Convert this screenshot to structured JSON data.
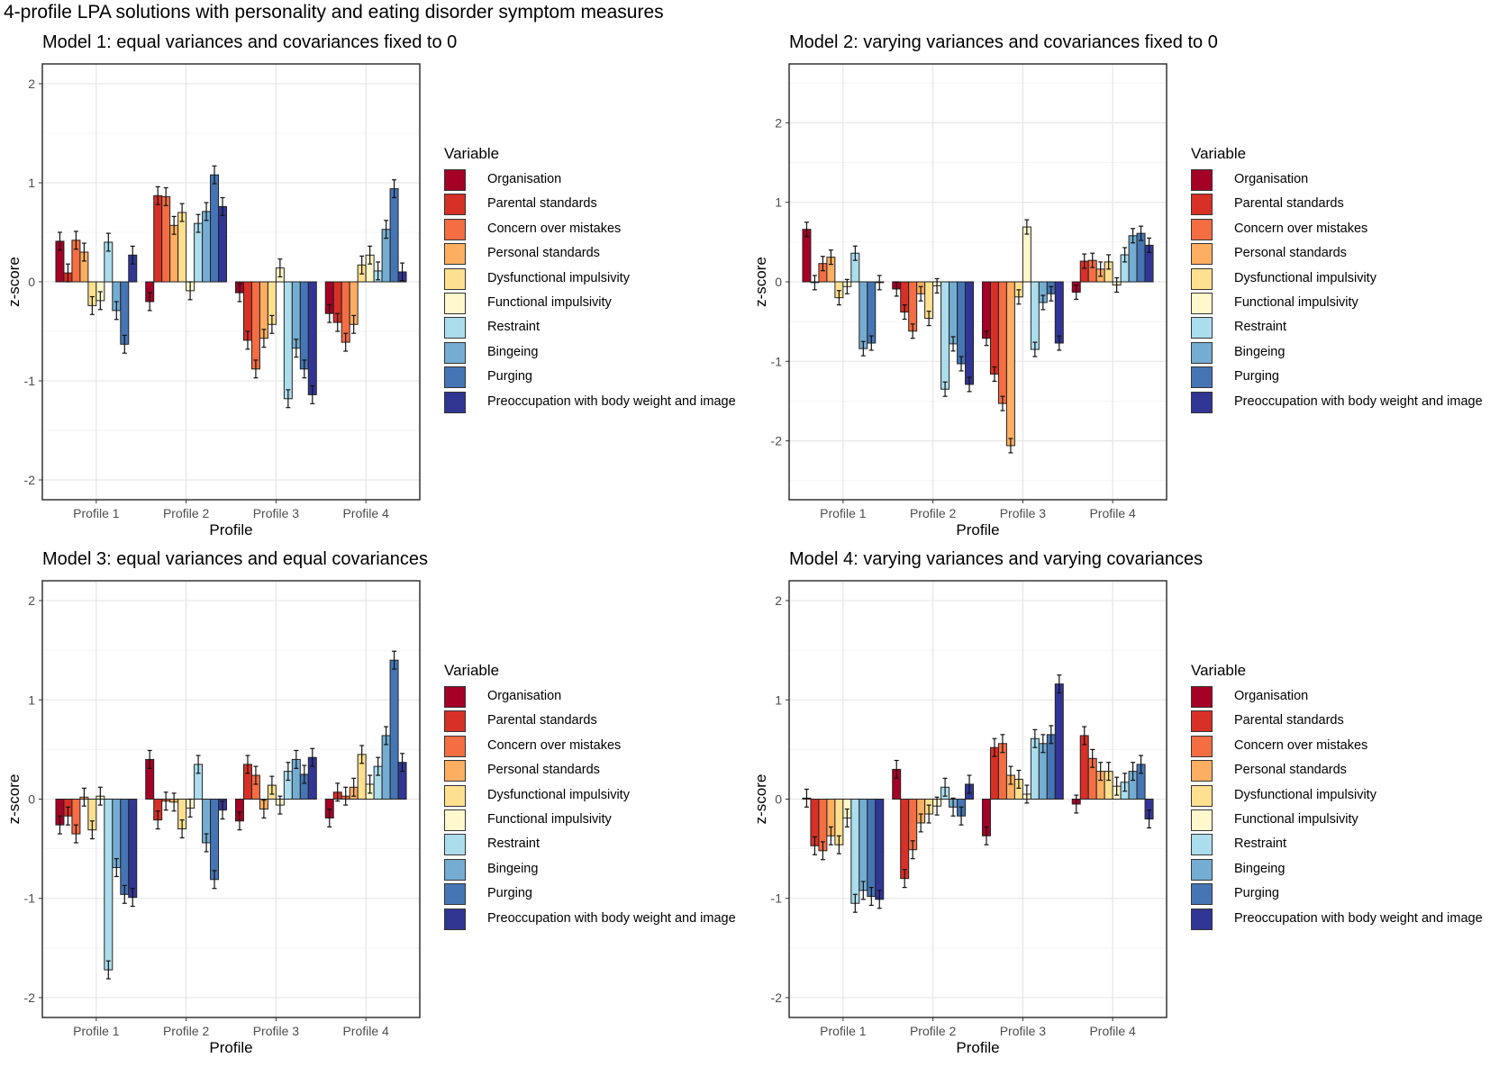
{
  "title": "4-profile LPA solutions with personality and eating disorder symptom measures",
  "chart_data": [
    {
      "type": "bar",
      "title": "Model 1: equal variances and covariances fixed to 0",
      "xlabel": "Profile",
      "ylabel": "z-score",
      "ylim": [
        -2.2,
        2.2
      ],
      "yticks": [
        -2,
        -1,
        0,
        1,
        2
      ],
      "legend_title": "Variable",
      "legend_position": "right",
      "categories": [
        "Profile 1",
        "Profile 2",
        "Profile 3",
        "Profile 4"
      ],
      "error_bar_halfwidth_approx": 0.09,
      "series": [
        {
          "name": "Organisation",
          "color": "#A50026",
          "values": [
            0.41,
            -0.2,
            -0.11,
            -0.32
          ]
        },
        {
          "name": "Parental standards",
          "color": "#D73027",
          "values": [
            0.09,
            0.87,
            -0.59,
            -0.41
          ]
        },
        {
          "name": "Concern over mistakes",
          "color": "#F46D43",
          "values": [
            0.42,
            0.86,
            -0.88,
            -0.61
          ]
        },
        {
          "name": "Personal standards",
          "color": "#FDAE61",
          "values": [
            0.3,
            0.57,
            -0.57,
            -0.43
          ]
        },
        {
          "name": "Dysfunctional impulsivity",
          "color": "#FEE090",
          "values": [
            -0.24,
            0.7,
            -0.43,
            0.17
          ]
        },
        {
          "name": "Functional impulsivity",
          "color": "#FFF8CC",
          "values": [
            -0.19,
            -0.09,
            0.14,
            0.27
          ]
        },
        {
          "name": "Restraint",
          "color": "#ABDDEC",
          "values": [
            0.4,
            0.59,
            -1.18,
            0.11
          ]
        },
        {
          "name": "Bingeing",
          "color": "#74ADD1",
          "values": [
            -0.29,
            0.71,
            -0.67,
            0.53
          ]
        },
        {
          "name": "Purging",
          "color": "#4575B4",
          "values": [
            -0.63,
            1.08,
            -0.88,
            0.94
          ]
        },
        {
          "name": "Preoccupation with body weight and image",
          "color": "#313695",
          "values": [
            0.27,
            0.76,
            -1.14,
            0.1
          ]
        }
      ]
    },
    {
      "type": "bar",
      "title": "Model 2: varying variances and covariances fixed to 0",
      "xlabel": "Profile",
      "ylabel": "z-score",
      "ylim": [
        -2.74,
        2.74
      ],
      "yticks": [
        -2,
        -1,
        0,
        1,
        2
      ],
      "legend_title": "Variable",
      "legend_position": "right",
      "categories": [
        "Profile 1",
        "Profile 2",
        "Profile 3",
        "Profile 4"
      ],
      "error_bar_halfwidth_approx": 0.09,
      "series": [
        {
          "name": "Organisation",
          "color": "#A50026",
          "values": [
            0.66,
            -0.09,
            -0.71,
            -0.13
          ]
        },
        {
          "name": "Parental standards",
          "color": "#D73027",
          "values": [
            -0.01,
            -0.38,
            -1.16,
            0.26
          ]
        },
        {
          "name": "Concern over mistakes",
          "color": "#F46D43",
          "values": [
            0.23,
            -0.62,
            -1.53,
            0.27
          ]
        },
        {
          "name": "Personal standards",
          "color": "#FDAE61",
          "values": [
            0.31,
            -0.15,
            -2.06,
            0.16
          ]
        },
        {
          "name": "Dysfunctional impulsivity",
          "color": "#FEE090",
          "values": [
            -0.2,
            -0.46,
            -0.19,
            0.25
          ]
        },
        {
          "name": "Functional impulsivity",
          "color": "#FFF8CC",
          "values": [
            -0.06,
            -0.05,
            0.69,
            -0.04
          ]
        },
        {
          "name": "Restraint",
          "color": "#ABDDEC",
          "values": [
            0.36,
            -1.35,
            -0.85,
            0.34
          ]
        },
        {
          "name": "Bingeing",
          "color": "#74ADD1",
          "values": [
            -0.84,
            -0.78,
            -0.26,
            0.58
          ]
        },
        {
          "name": "Purging",
          "color": "#4575B4",
          "values": [
            -0.77,
            -1.03,
            -0.15,
            0.61
          ]
        },
        {
          "name": "Preoccupation with body weight and image",
          "color": "#313695",
          "values": [
            -0.01,
            -1.29,
            -0.77,
            0.46
          ]
        }
      ]
    },
    {
      "type": "bar",
      "title": "Model 3: equal variances and equal covariances",
      "xlabel": "Profile",
      "ylabel": "z-score",
      "ylim": [
        -2.2,
        2.2
      ],
      "yticks": [
        -2,
        -1,
        0,
        1,
        2
      ],
      "legend_title": "Variable",
      "legend_position": "right",
      "categories": [
        "Profile 1",
        "Profile 2",
        "Profile 3",
        "Profile 4"
      ],
      "error_bar_halfwidth_approx": 0.09,
      "series": [
        {
          "name": "Organisation",
          "color": "#A50026",
          "values": [
            -0.26,
            0.4,
            -0.22,
            -0.19
          ]
        },
        {
          "name": "Parental standards",
          "color": "#D73027",
          "values": [
            -0.17,
            -0.21,
            0.35,
            0.07
          ]
        },
        {
          "name": "Concern over mistakes",
          "color": "#F46D43",
          "values": [
            -0.35,
            -0.02,
            0.24,
            0.03
          ]
        },
        {
          "name": "Personal standards",
          "color": "#FDAE61",
          "values": [
            0.02,
            -0.03,
            -0.1,
            0.12
          ]
        },
        {
          "name": "Dysfunctional impulsivity",
          "color": "#FEE090",
          "values": [
            -0.31,
            -0.3,
            0.14,
            0.45
          ]
        },
        {
          "name": "Functional impulsivity",
          "color": "#FFF8CC",
          "values": [
            0.03,
            -0.09,
            -0.06,
            0.15
          ]
        },
        {
          "name": "Restraint",
          "color": "#ABDDEC",
          "values": [
            -1.72,
            0.35,
            0.28,
            0.33
          ]
        },
        {
          "name": "Bingeing",
          "color": "#74ADD1",
          "values": [
            -0.69,
            -0.44,
            0.4,
            0.64
          ]
        },
        {
          "name": "Purging",
          "color": "#4575B4",
          "values": [
            -0.96,
            -0.81,
            0.25,
            1.4
          ]
        },
        {
          "name": "Preoccupation with body weight and image",
          "color": "#313695",
          "values": [
            -0.99,
            -0.11,
            0.42,
            0.37
          ]
        }
      ]
    },
    {
      "type": "bar",
      "title": "Model 4: varying variances and varying covariances",
      "xlabel": "Profile",
      "ylabel": "z-score",
      "ylim": [
        -2.2,
        2.2
      ],
      "yticks": [
        -2,
        -1,
        0,
        1,
        2
      ],
      "legend_title": "Variable",
      "legend_position": "right",
      "categories": [
        "Profile 1",
        "Profile 2",
        "Profile 3",
        "Profile 4"
      ],
      "error_bar_halfwidth_approx": 0.09,
      "series": [
        {
          "name": "Organisation",
          "color": "#A50026",
          "values": [
            0.01,
            0.3,
            -0.37,
            -0.05
          ]
        },
        {
          "name": "Parental standards",
          "color": "#D73027",
          "values": [
            -0.47,
            -0.8,
            0.52,
            0.64
          ]
        },
        {
          "name": "Concern over mistakes",
          "color": "#F46D43",
          "values": [
            -0.52,
            -0.51,
            0.56,
            0.41
          ]
        },
        {
          "name": "Personal standards",
          "color": "#FDAE61",
          "values": [
            -0.37,
            -0.24,
            0.24,
            0.28
          ]
        },
        {
          "name": "Dysfunctional impulsivity",
          "color": "#FEE090",
          "values": [
            -0.46,
            -0.15,
            0.2,
            0.28
          ]
        },
        {
          "name": "Functional impulsivity",
          "color": "#FFF8CC",
          "values": [
            -0.19,
            -0.07,
            0.05,
            0.13
          ]
        },
        {
          "name": "Restraint",
          "color": "#ABDDEC",
          "values": [
            -1.05,
            0.12,
            0.61,
            0.17
          ]
        },
        {
          "name": "Bingeing",
          "color": "#74ADD1",
          "values": [
            -0.92,
            -0.08,
            0.56,
            0.28
          ]
        },
        {
          "name": "Purging",
          "color": "#4575B4",
          "values": [
            -0.98,
            -0.17,
            0.65,
            0.35
          ]
        },
        {
          "name": "Preoccupation with body weight and image",
          "color": "#313695",
          "values": [
            -1.01,
            0.15,
            1.16,
            -0.2
          ]
        }
      ]
    }
  ]
}
